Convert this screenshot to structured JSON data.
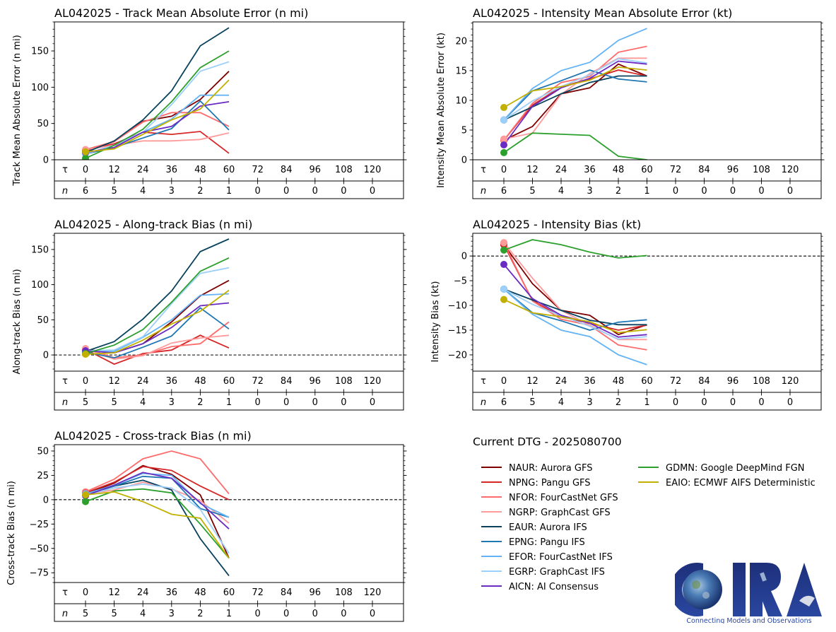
{
  "storm_id": "AL042025",
  "models": [
    {
      "code": "NAUR",
      "name": "Aurora GFS",
      "color": "#7f0000"
    },
    {
      "code": "NPNG",
      "name": "Pangu GFS",
      "color": "#d62728"
    },
    {
      "code": "NFOR",
      "name": "FourCastNet GFS",
      "color": "#ff6b6b"
    },
    {
      "code": "NGRP",
      "name": "GraphCast GFS",
      "color": "#ff9b9b"
    },
    {
      "code": "EAUR",
      "name": "Aurora IFS",
      "color": "#08425e"
    },
    {
      "code": "EPNG",
      "name": "Pangu IFS",
      "color": "#1f77b4"
    },
    {
      "code": "EFOR",
      "name": "FourCastNet IFS",
      "color": "#63b3f5"
    },
    {
      "code": "EGRP",
      "name": "GraphCast IFS",
      "color": "#9ccffa"
    },
    {
      "code": "AICN",
      "name": "AI Consensus",
      "color": "#6a2bc2"
    },
    {
      "code": "GDMN",
      "name": "Google DeepMind FGN",
      "color": "#2ca02c"
    },
    {
      "code": "EAIO",
      "name": "ECMWF AIFS Deterministic",
      "color": "#c2b000"
    }
  ],
  "legend": {
    "title": "Current DTG - 2025080700",
    "entries": [
      "NAUR: Aurora GFS",
      "NPNG: Pangu GFS",
      "NFOR: FourCastNet GFS",
      "NGRP: GraphCast GFS",
      "EAUR: Aurora IFS",
      "EPNG: Pangu IFS",
      "EFOR: FourCastNet IFS",
      "EGRP: GraphCast IFS",
      "AICN: AI Consensus",
      "GDMN: Google DeepMind FGN",
      "EAIO: ECMWF AIFS Deterministic"
    ]
  },
  "logo": {
    "text": "CIRA",
    "tagline": "Connecting Models and Observations"
  },
  "table_labels": {
    "tau": "τ",
    "n": "n"
  },
  "chart_data": [
    {
      "id": "track_mae",
      "type": "line",
      "title": "AL042025 - Track Mean Absolute Error (n mi)",
      "ylabel": "Track Mean Absolute Error (n mi)",
      "xlabel": "τ",
      "x": [
        0,
        12,
        24,
        36,
        48,
        60
      ],
      "x_ticks": [
        0,
        12,
        24,
        36,
        48,
        60,
        72,
        84,
        96,
        108,
        120
      ],
      "n": [
        6,
        5,
        4,
        3,
        2,
        1,
        0,
        0,
        0,
        0,
        0
      ],
      "ylim": [
        0,
        190
      ],
      "yticks": [
        0,
        50,
        100,
        150
      ],
      "zero_line": false,
      "series": [
        {
          "name": "NAUR",
          "values": [
            12,
            25,
            53,
            60,
            83,
            122
          ]
        },
        {
          "name": "NPNG",
          "values": [
            13,
            22,
            38,
            35,
            39,
            9
          ]
        },
        {
          "name": "NFOR",
          "values": [
            14,
            25,
            52,
            65,
            65,
            46
          ]
        },
        {
          "name": "NGRP",
          "values": [
            14,
            20,
            26,
            26,
            28,
            37
          ]
        },
        {
          "name": "EAUR",
          "values": [
            10,
            26,
            55,
            95,
            157,
            182
          ]
        },
        {
          "name": "EPNG",
          "values": [
            8,
            17,
            30,
            43,
            81,
            41
          ]
        },
        {
          "name": "EFOR",
          "values": [
            8,
            20,
            38,
            56,
            89,
            89
          ]
        },
        {
          "name": "EGRP",
          "values": [
            8,
            20,
            38,
            76,
            122,
            135
          ]
        },
        {
          "name": "AICN",
          "values": [
            10,
            17,
            38,
            46,
            74,
            80
          ]
        },
        {
          "name": "GDMN",
          "values": [
            2,
            20,
            42,
            80,
            127,
            150
          ]
        },
        {
          "name": "EAIO",
          "values": [
            11,
            15,
            35,
            55,
            70,
            110
          ]
        }
      ]
    },
    {
      "id": "intensity_mae",
      "type": "line",
      "title": "AL042025 - Intensity Mean Absolute Error (kt)",
      "ylabel": "Intensity Mean Absolute Error (kt)",
      "xlabel": "τ",
      "x": [
        0,
        12,
        24,
        36,
        48,
        60
      ],
      "x_ticks": [
        0,
        12,
        24,
        36,
        48,
        60,
        72,
        84,
        96,
        108,
        120
      ],
      "n": [
        6,
        5,
        4,
        3,
        2,
        1,
        0,
        0,
        0,
        0,
        0
      ],
      "ylim": [
        0,
        23.2
      ],
      "yticks": [
        0,
        5,
        10,
        15,
        20
      ],
      "zero_line": false,
      "series": [
        {
          "name": "NAUR",
          "values": [
            3.3,
            5.6,
            11.1,
            12.1,
            16.1,
            14.1
          ]
        },
        {
          "name": "NPNG",
          "values": [
            3.3,
            9.2,
            12.3,
            13.6,
            15.1,
            14.1
          ]
        },
        {
          "name": "NFOR",
          "values": [
            3.3,
            9.5,
            13.0,
            14.0,
            18.1,
            19.1
          ]
        },
        {
          "name": "NGRP",
          "values": [
            3.5,
            4.5,
            11.0,
            14.5,
            17.1,
            17.1
          ]
        },
        {
          "name": "EAUR",
          "values": [
            6.7,
            8.9,
            11.1,
            13.0,
            14.1,
            14.1
          ]
        },
        {
          "name": "EPNG",
          "values": [
            6.7,
            11.6,
            13.3,
            15.1,
            13.6,
            13.1
          ]
        },
        {
          "name": "EFOR",
          "values": [
            6.7,
            12.0,
            15.0,
            16.4,
            20.1,
            22.1
          ]
        },
        {
          "name": "EGRP",
          "values": [
            6.7,
            9.9,
            12.3,
            14.3,
            17.0,
            16.3
          ]
        },
        {
          "name": "AICN",
          "values": [
            2.5,
            9.0,
            12.1,
            13.7,
            16.6,
            16.1
          ]
        },
        {
          "name": "GDMN",
          "values": [
            1.2,
            4.5,
            4.3,
            4.1,
            0.6,
            0.0
          ]
        },
        {
          "name": "EAIO",
          "values": [
            8.8,
            11.6,
            12.3,
            13.4,
            15.6,
            15.1
          ]
        }
      ]
    },
    {
      "id": "along_track_bias",
      "type": "line",
      "title": "AL042025 - Along-track Bias (n mi)",
      "ylabel": "Along-track Bias (n mi)",
      "xlabel": "τ",
      "x": [
        0,
        12,
        24,
        36,
        48,
        60
      ],
      "x_ticks": [
        0,
        12,
        24,
        36,
        48,
        60,
        72,
        84,
        96,
        108,
        120
      ],
      "n": [
        5,
        5,
        4,
        3,
        2,
        1,
        0,
        0,
        0,
        0,
        0
      ],
      "ylim": [
        -23,
        173
      ],
      "yticks": [
        0,
        50,
        100,
        150
      ],
      "zero_line": true,
      "series": [
        {
          "name": "NAUR",
          "values": [
            8,
            3,
            16,
            47,
            84,
            106
          ]
        },
        {
          "name": "NPNG",
          "values": [
            8,
            -13,
            2,
            7,
            28,
            10
          ]
        },
        {
          "name": "NFOR",
          "values": [
            9,
            -4,
            0,
            12,
            16,
            47
          ]
        },
        {
          "name": "NGRP",
          "values": [
            9,
            -6,
            -1,
            17,
            24,
            28
          ]
        },
        {
          "name": "EAUR",
          "values": [
            5,
            19,
            51,
            91,
            147,
            165
          ]
        },
        {
          "name": "EPNG",
          "values": [
            4,
            -4,
            11,
            27,
            67,
            37
          ]
        },
        {
          "name": "EFOR",
          "values": [
            5,
            5,
            25,
            50,
            85,
            87
          ]
        },
        {
          "name": "EGRP",
          "values": [
            6,
            7,
            26,
            73,
            116,
            124
          ]
        },
        {
          "name": "AICN",
          "values": [
            6,
            3,
            16,
            39,
            70,
            74
          ]
        },
        {
          "name": "GDMN",
          "values": [
            2,
            14,
            36,
            75,
            119,
            138
          ]
        },
        {
          "name": "EAIO",
          "values": [
            1,
            3,
            21,
            44,
            62,
            92
          ]
        }
      ]
    },
    {
      "id": "intensity_bias",
      "type": "line",
      "title": "AL042025 - Intensity Bias (kt)",
      "ylabel": "Intensity Bias (kt)",
      "xlabel": "τ",
      "x": [
        0,
        12,
        24,
        36,
        48,
        60
      ],
      "x_ticks": [
        0,
        12,
        24,
        36,
        48,
        60,
        72,
        84,
        96,
        108,
        120
      ],
      "n": [
        6,
        5,
        4,
        3,
        2,
        1,
        0,
        0,
        0,
        0,
        0
      ],
      "ylim": [
        -23.3,
        4.6
      ],
      "yticks": [
        -20,
        -15,
        -10,
        -5,
        0
      ],
      "zero_line": true,
      "series": [
        {
          "name": "NAUR",
          "values": [
            2.3,
            -5.6,
            -11.0,
            -12.0,
            -15.9,
            -13.9
          ]
        },
        {
          "name": "NPNG",
          "values": [
            2.3,
            -9.0,
            -12.3,
            -13.6,
            -15.0,
            -14.0
          ]
        },
        {
          "name": "NFOR",
          "values": [
            2.7,
            -9.1,
            -12.8,
            -14.0,
            -18.0,
            -19.0
          ]
        },
        {
          "name": "NGRP",
          "values": [
            2.7,
            -4.5,
            -11.0,
            -14.0,
            -16.9,
            -16.9
          ]
        },
        {
          "name": "EAUR",
          "values": [
            -6.7,
            -8.9,
            -11.0,
            -13.0,
            -13.9,
            -13.9
          ]
        },
        {
          "name": "EPNG",
          "values": [
            -6.7,
            -11.5,
            -13.1,
            -15.0,
            -13.4,
            -12.9
          ]
        },
        {
          "name": "EFOR",
          "values": [
            -6.7,
            -11.8,
            -15.0,
            -16.3,
            -20.0,
            -22.0
          ]
        },
        {
          "name": "EGRP",
          "values": [
            -6.7,
            -9.8,
            -12.1,
            -14.2,
            -16.8,
            -16.3
          ]
        },
        {
          "name": "AICN",
          "values": [
            -1.7,
            -8.6,
            -12.0,
            -13.6,
            -16.4,
            -15.9
          ]
        },
        {
          "name": "GDMN",
          "values": [
            1.2,
            3.3,
            2.3,
            0.8,
            -0.4,
            0.1
          ]
        },
        {
          "name": "EAIO",
          "values": [
            -8.8,
            -11.5,
            -12.3,
            -13.3,
            -15.5,
            -14.9
          ]
        }
      ]
    },
    {
      "id": "cross_track_bias",
      "type": "line",
      "title": "AL042025 - Cross-track Bias (n mi)",
      "ylabel": "Cross-track Bias (n mi)",
      "xlabel": "τ",
      "x": [
        0,
        12,
        24,
        36,
        48,
        60
      ],
      "x_ticks": [
        0,
        12,
        24,
        36,
        48,
        60,
        72,
        84,
        96,
        108,
        120
      ],
      "n": [
        5,
        5,
        4,
        3,
        2,
        1,
        0,
        0,
        0,
        0,
        0
      ],
      "ylim": [
        -85,
        56.5
      ],
      "yticks": [
        -75,
        -50,
        -25,
        0,
        25,
        50
      ],
      "zero_line": true,
      "series": [
        {
          "name": "NAUR",
          "values": [
            6,
            17,
            35,
            26,
            5,
            -60
          ]
        },
        {
          "name": "NPNG",
          "values": [
            7,
            18,
            34,
            30,
            14,
            0
          ]
        },
        {
          "name": "NFOR",
          "values": [
            8,
            21,
            42,
            50,
            42,
            6
          ]
        },
        {
          "name": "NGRP",
          "values": [
            6,
            10,
            18,
            11,
            -1,
            -24
          ]
        },
        {
          "name": "EAUR",
          "values": [
            5,
            14,
            20,
            10,
            -40,
            -78
          ]
        },
        {
          "name": "EPNG",
          "values": [
            6,
            14,
            24,
            22,
            -9,
            -18
          ]
        },
        {
          "name": "EFOR",
          "values": [
            6,
            15,
            27,
            25,
            -4,
            -18
          ]
        },
        {
          "name": "EGRP",
          "values": [
            5,
            12,
            16,
            12,
            -10,
            -55
          ]
        },
        {
          "name": "AICN",
          "values": [
            4,
            15,
            28,
            22,
            -3,
            -30
          ]
        },
        {
          "name": "GDMN",
          "values": [
            -2,
            9,
            11,
            7,
            -25,
            -60
          ]
        },
        {
          "name": "EAIO",
          "values": [
            5,
            8,
            -2,
            -15,
            -19,
            -60
          ]
        }
      ]
    }
  ]
}
